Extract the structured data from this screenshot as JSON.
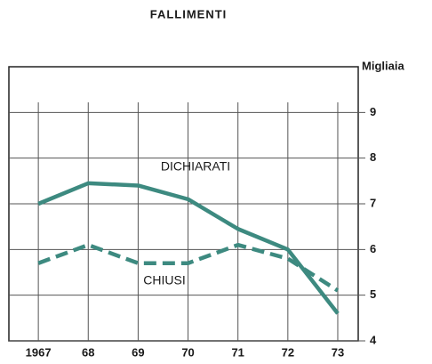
{
  "chart_data": {
    "type": "line",
    "title": "FALLIMENTI",
    "y_axis_label": "Migliaia",
    "categories": [
      "1967",
      "68",
      "69",
      "70",
      "71",
      "72",
      "73"
    ],
    "series": [
      {
        "name": "DICHIARATI",
        "color": "#3d8a80",
        "dash": false,
        "values": [
          7.0,
          7.45,
          7.4,
          7.1,
          6.45,
          6.0,
          4.6
        ]
      },
      {
        "name": "CHIUSI",
        "color": "#3d8a80",
        "dash": true,
        "values": [
          5.7,
          6.1,
          5.7,
          5.7,
          6.1,
          5.8,
          5.1
        ]
      }
    ],
    "ylim": [
      4,
      10
    ],
    "yticks": [
      4,
      5,
      6,
      7,
      8,
      9
    ],
    "grid": true
  }
}
